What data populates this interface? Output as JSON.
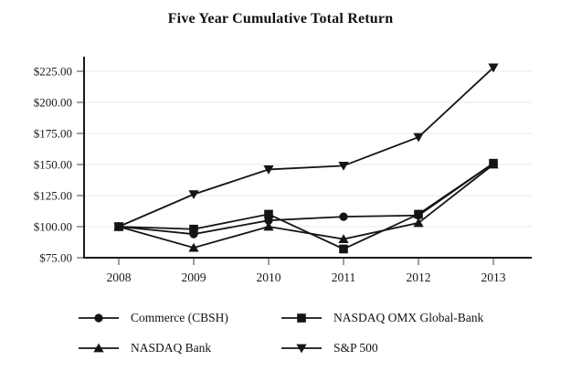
{
  "chart_data": {
    "type": "line",
    "title": "Five Year Cumulative Total Return",
    "xlabel": "",
    "ylabel": "",
    "x_categories": [
      "2008",
      "2009",
      "2010",
      "2011",
      "2012",
      "2013"
    ],
    "y_ticks": [
      75,
      100,
      125,
      150,
      175,
      200,
      225
    ],
    "y_tick_labels": [
      "$75.00",
      "$100.00",
      "$125.00",
      "$150.00",
      "$175.00",
      "$200.00",
      "$225.00"
    ],
    "ylim": [
      75,
      235
    ],
    "grid": "horizontal-only",
    "legend_position": "bottom",
    "line_color": "#141414",
    "grid_color": "#e9e9e9",
    "axis_color": "#1a1a1a",
    "tick_color": "#808080",
    "series": [
      {
        "name": "Commerce (CBSH)",
        "marker": "circle",
        "values": [
          100,
          94,
          105,
          108,
          109,
          151
        ]
      },
      {
        "name": "NASDAQ OMX Global-Bank",
        "marker": "square",
        "values": [
          100,
          98,
          110,
          82,
          110,
          151
        ]
      },
      {
        "name": "NASDAQ Bank",
        "marker": "triangle-up",
        "values": [
          100,
          83,
          100,
          90,
          103,
          150
        ]
      },
      {
        "name": "S&P 500",
        "marker": "triangle-down",
        "values": [
          100,
          126,
          146,
          149,
          172,
          228
        ]
      }
    ]
  }
}
